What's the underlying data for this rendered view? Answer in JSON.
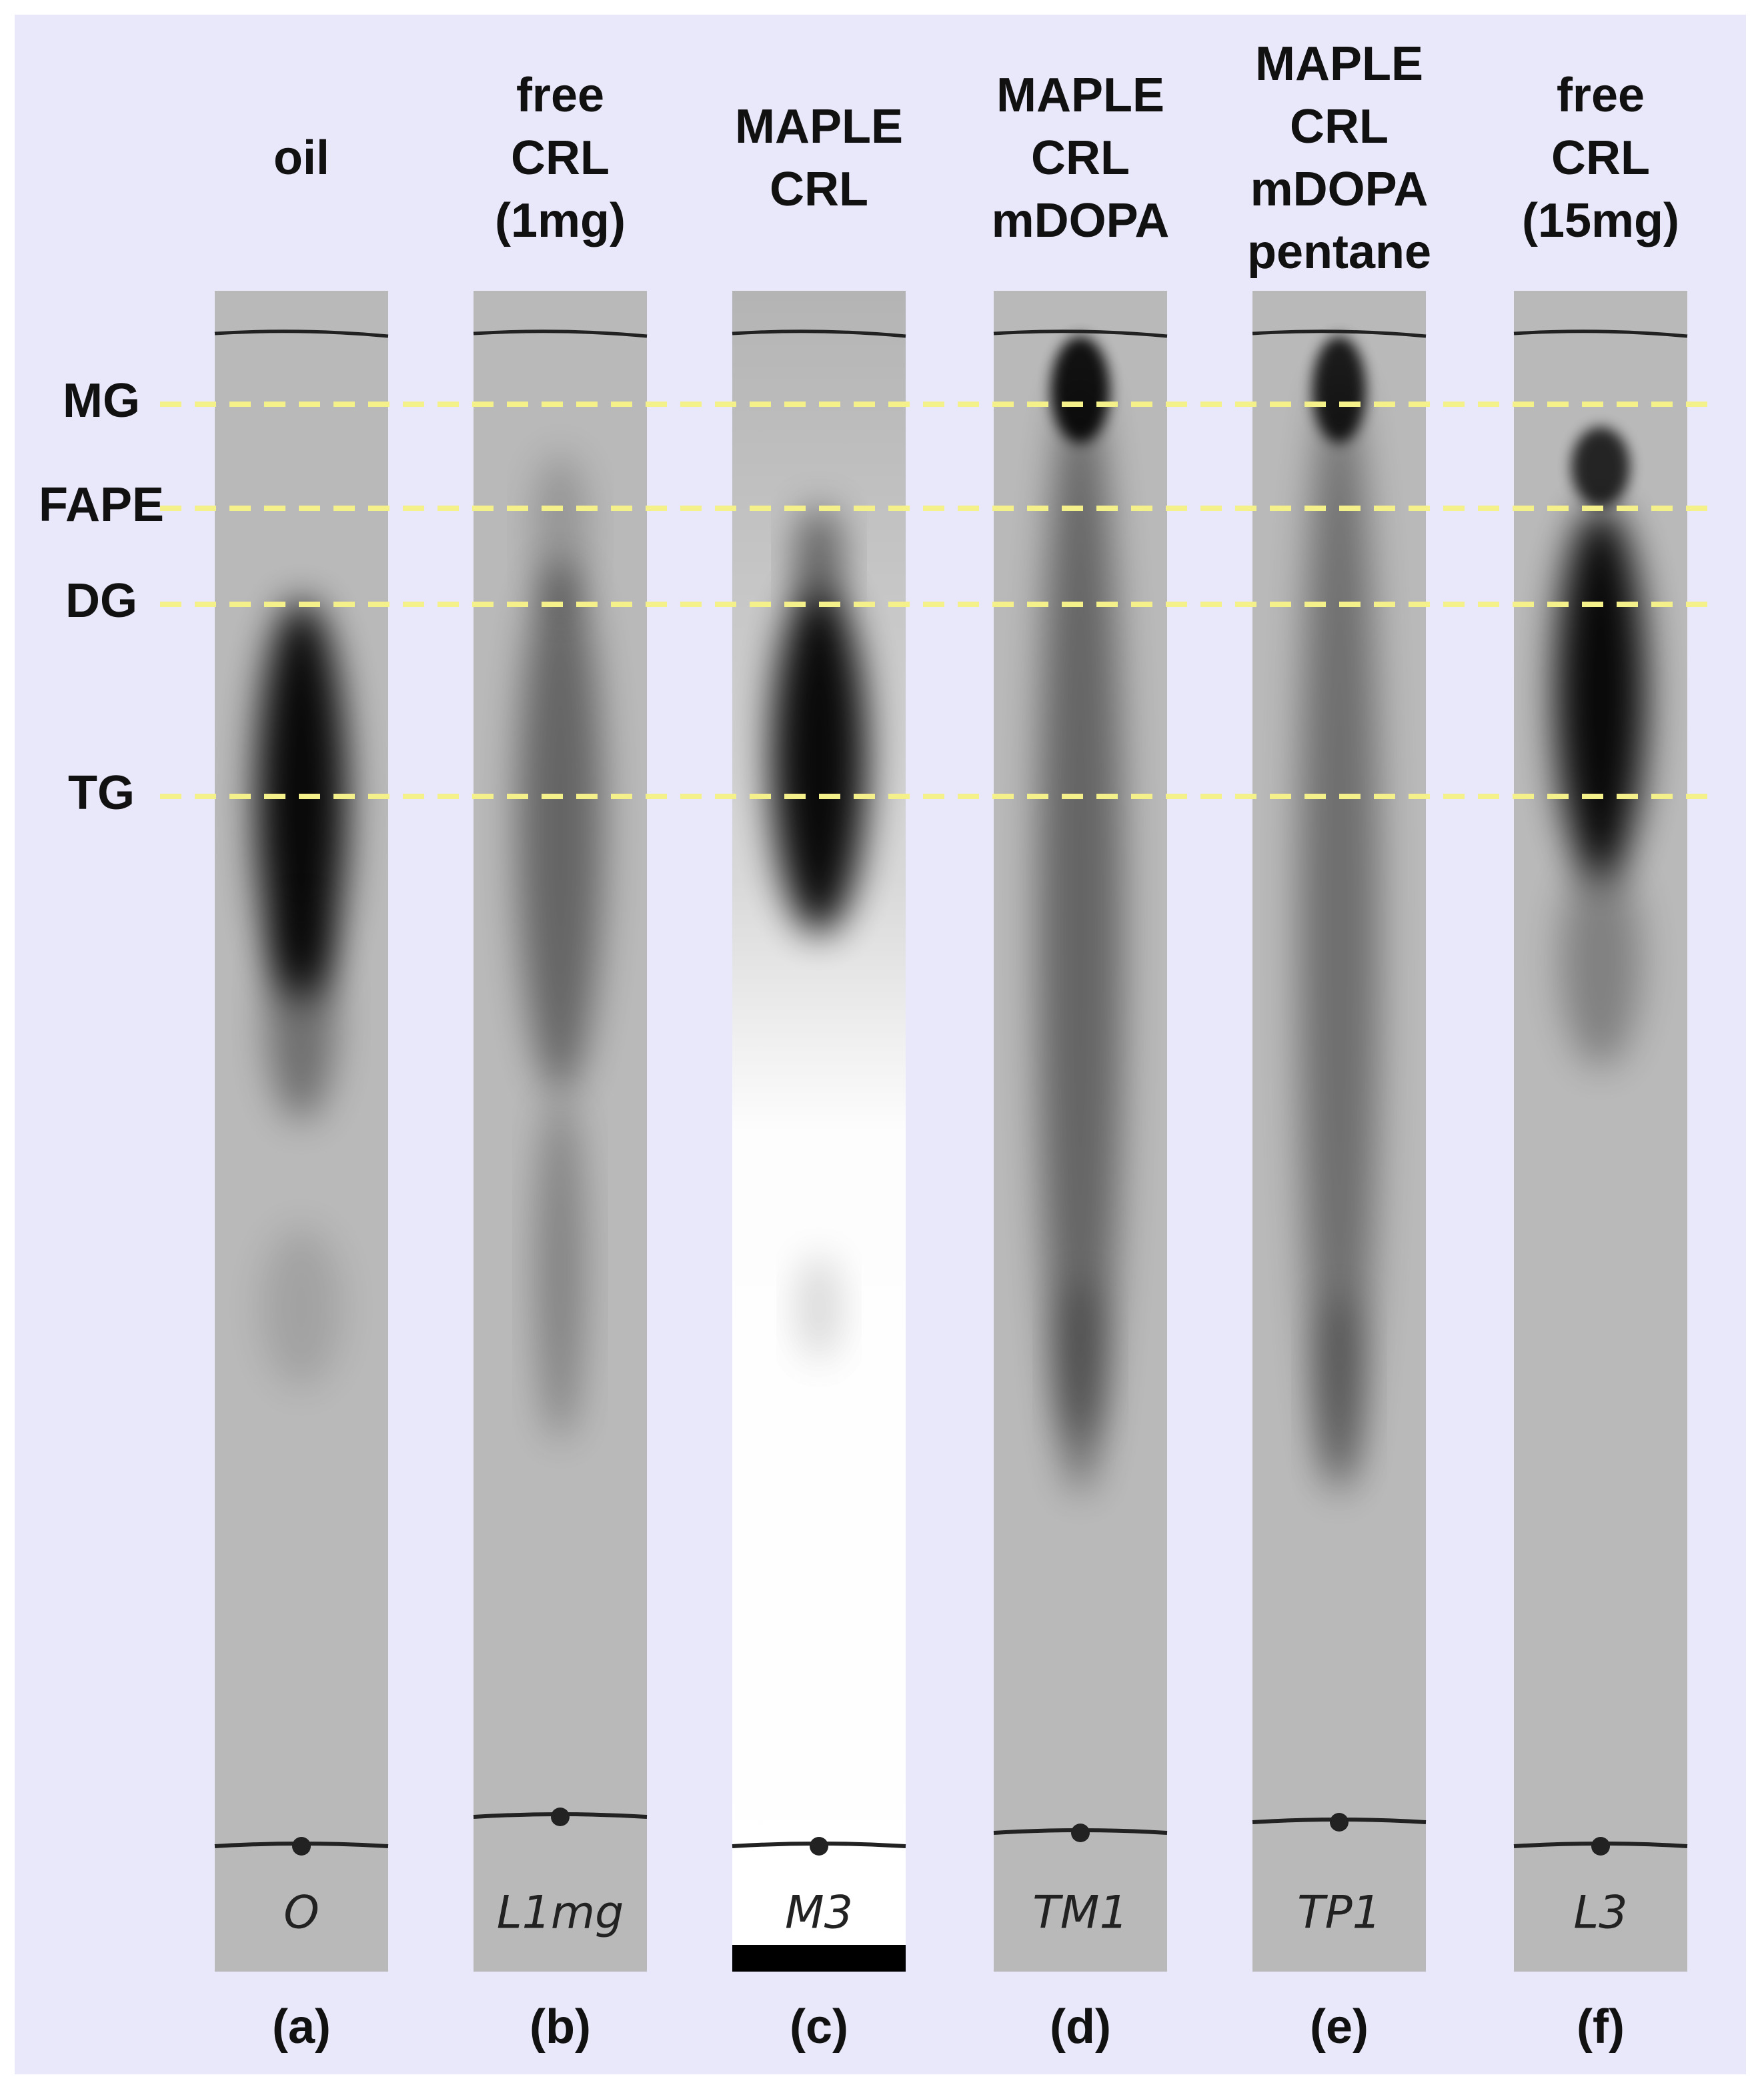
{
  "bands": [
    "MG",
    "FAPE",
    "DG",
    "TG"
  ],
  "lanes": [
    {
      "label": [
        "oil"
      ],
      "letter": "(a)",
      "mark": "O"
    },
    {
      "label": [
        "free",
        "CRL",
        "(1mg)"
      ],
      "letter": "(b)",
      "mark": "L1mg"
    },
    {
      "label": [
        "MAPLE",
        "CRL"
      ],
      "letter": "(c)",
      "mark": "M3"
    },
    {
      "label": [
        "MAPLE",
        "CRL",
        "mDOPA"
      ],
      "letter": "(d)",
      "mark": "TM1"
    },
    {
      "label": [
        "MAPLE",
        "CRL",
        "mDOPA",
        "pentane"
      ],
      "letter": "(e)",
      "mark": "TP1"
    },
    {
      "label": [
        "free",
        "CRL",
        "(15mg)"
      ],
      "letter": "(f)",
      "mark": "L3"
    }
  ]
}
